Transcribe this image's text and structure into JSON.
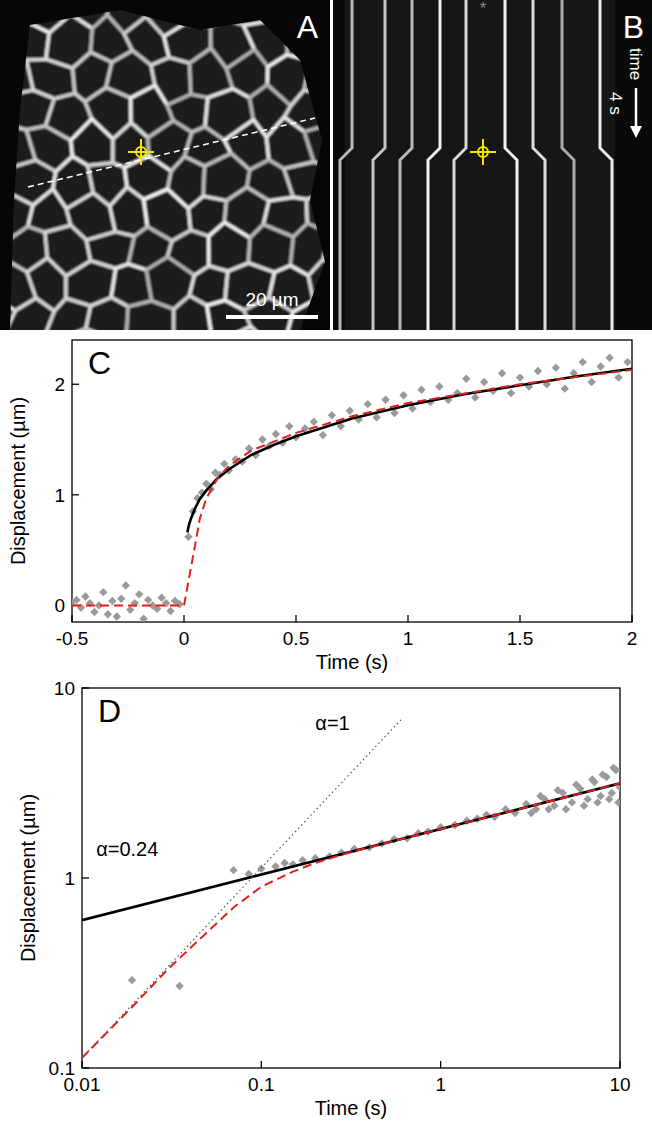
{
  "images": [
    {
      "letter": "A",
      "scale_bar": "20 µm"
    },
    {
      "letter": "B",
      "asterisk": "*",
      "time_axis": "time",
      "time_scale": "4 s"
    }
  ],
  "chart_data": [
    {
      "type": "scatter",
      "title": "C",
      "x_label": "Time (s)",
      "y_label": "Displacement (µm)",
      "xlim": [
        -0.5,
        2
      ],
      "ylim": [
        -0.15,
        2.4
      ],
      "xticks": [
        -0.5,
        0,
        0.5,
        1,
        1.5,
        2
      ],
      "yticks": [
        0,
        1,
        2
      ],
      "series": [
        {
          "type": "scatter",
          "color": "#9a9a9a",
          "marker": "diamond",
          "x": [
            -0.5,
            -0.48,
            -0.46,
            -0.44,
            -0.42,
            -0.4,
            -0.38,
            -0.36,
            -0.34,
            -0.32,
            -0.3,
            -0.28,
            -0.26,
            -0.24,
            -0.22,
            -0.2,
            -0.18,
            -0.16,
            -0.14,
            -0.12,
            -0.1,
            -0.08,
            -0.06,
            -0.04,
            -0.02,
            0.02,
            0.04,
            0.06,
            0.08,
            0.1,
            0.12,
            0.14,
            0.16,
            0.18,
            0.2,
            0.23,
            0.26,
            0.29,
            0.32,
            0.35,
            0.38,
            0.41,
            0.44,
            0.47,
            0.5,
            0.54,
            0.58,
            0.62,
            0.66,
            0.7,
            0.74,
            0.78,
            0.82,
            0.86,
            0.9,
            0.94,
            0.98,
            1.02,
            1.06,
            1.1,
            1.14,
            1.18,
            1.22,
            1.26,
            1.3,
            1.34,
            1.38,
            1.42,
            1.46,
            1.5,
            1.54,
            1.58,
            1.62,
            1.66,
            1.7,
            1.74,
            1.78,
            1.82,
            1.86,
            1.9,
            1.94,
            1.98
          ],
          "values": [
            0.03,
            0.05,
            -0.02,
            0.08,
            0.02,
            -0.06,
            0,
            0.12,
            -0.08,
            0.04,
            -0.1,
            0.06,
            0.18,
            -0.04,
            0.02,
            0.1,
            -0.12,
            0.05,
            0,
            -0.03,
            0.07,
            0.02,
            -0.05,
            0.04,
            0.01,
            0.62,
            0.85,
            0.97,
            1.02,
            1.1,
            1.05,
            1.2,
            1.18,
            1.28,
            1.22,
            1.32,
            1.3,
            1.42,
            1.36,
            1.5,
            1.44,
            1.55,
            1.47,
            1.62,
            1.52,
            1.6,
            1.66,
            1.54,
            1.72,
            1.62,
            1.76,
            1.68,
            1.82,
            1.7,
            1.86,
            1.74,
            1.9,
            1.78,
            1.95,
            1.84,
            1.98,
            1.86,
            1.92,
            2.05,
            1.88,
            2.02,
            1.94,
            2.1,
            1.92,
            2.06,
            1.98,
            2.12,
            2.0,
            2.15,
            1.96,
            2.1,
            2.2,
            2.02,
            2.16,
            2.24,
            2.06,
            2.2
          ]
        },
        {
          "type": "line",
          "color": "#000000",
          "line_style": "solid",
          "x": [
            0.015,
            0.02,
            0.03,
            0.05,
            0.07,
            0.1,
            0.15,
            0.2,
            0.3,
            0.4,
            0.5,
            0.75,
            1,
            1.25,
            1.5,
            1.75,
            2
          ],
          "values": [
            0.66,
            0.71,
            0.78,
            0.88,
            0.96,
            1.04,
            1.15,
            1.23,
            1.36,
            1.45,
            1.53,
            1.69,
            1.81,
            1.91,
            1.99,
            2.07,
            2.14
          ]
        },
        {
          "type": "line",
          "color": "#e0201b",
          "line_style": "dashed",
          "x": [
            -0.5,
            0,
            0.01,
            0.02,
            0.03,
            0.05,
            0.07,
            0.1,
            0.15,
            0.2,
            0.3,
            0.5,
            0.75,
            1,
            1.5,
            2
          ],
          "values": [
            0,
            0,
            0.11,
            0.22,
            0.33,
            0.55,
            0.78,
            0.97,
            1.15,
            1.26,
            1.4,
            1.56,
            1.71,
            1.83,
            2.0,
            2.13
          ]
        }
      ]
    },
    {
      "type": "scatter",
      "title": "D",
      "x_label": "Time (s)",
      "y_label": "Displacement (µm)",
      "log": true,
      "xlim": [
        0.01,
        10
      ],
      "ylim": [
        0.1,
        10
      ],
      "xticks": [
        0.01,
        0.1,
        1,
        10
      ],
      "yticks": [
        0.1,
        1,
        10
      ],
      "annotations": [
        {
          "text": "α=1",
          "x": 0.2,
          "y": 6
        },
        {
          "text": "α=0.24",
          "x": 0.012,
          "y": 1.3
        }
      ],
      "series": [
        {
          "type": "scatter",
          "color": "#9a9a9a",
          "marker": "diamond",
          "x": [
            0.019,
            0.035,
            0.07,
            0.085,
            0.1,
            0.12,
            0.135,
            0.15,
            0.17,
            0.2,
            0.24,
            0.28,
            0.33,
            0.4,
            0.47,
            0.55,
            0.65,
            0.75,
            0.85,
            1,
            1.2,
            1.4,
            1.6,
            1.8,
            2,
            2.3,
            2.6,
            3,
            3.2,
            3.4,
            3.6,
            3.8,
            4,
            4.3,
            4.5,
            4.8,
            5,
            5.4,
            5.7,
            6,
            6.3,
            6.6,
            7,
            7.2,
            7.5,
            7.8,
            8,
            8.4,
            8.7,
            9,
            9.2,
            9.5,
            9.8,
            10
          ],
          "values": [
            0.29,
            0.27,
            1.1,
            1.05,
            1.12,
            1.15,
            1.2,
            1.18,
            1.24,
            1.27,
            1.3,
            1.36,
            1.42,
            1.45,
            1.52,
            1.6,
            1.62,
            1.72,
            1.75,
            1.85,
            1.9,
            2.0,
            2.05,
            2.15,
            2.1,
            2.3,
            2.2,
            2.45,
            2.2,
            2.3,
            2.7,
            2.6,
            2.3,
            2.4,
            2.9,
            2.8,
            2.3,
            2.5,
            3.1,
            2.95,
            2.4,
            2.6,
            3.3,
            3.2,
            2.5,
            2.7,
            3.5,
            3.4,
            2.6,
            2.8,
            3.8,
            3.7,
            2.5,
            3.0
          ]
        },
        {
          "type": "line",
          "color": "#000000",
          "line_style": "solid",
          "x": [
            0.01,
            10
          ],
          "values": [
            0.6,
            3.15
          ]
        },
        {
          "type": "line",
          "color": "#e0201b",
          "line_style": "dashed",
          "x": [
            0.01,
            0.02,
            0.03,
            0.05,
            0.07,
            0.1,
            0.15,
            0.2,
            0.3,
            0.5,
            1,
            2,
            5,
            10
          ],
          "values": [
            0.113,
            0.22,
            0.33,
            0.52,
            0.7,
            0.9,
            1.08,
            1.2,
            1.35,
            1.53,
            1.81,
            2.14,
            2.66,
            3.15
          ]
        },
        {
          "type": "line",
          "color": "#555555",
          "line_style": "dotted",
          "x": [
            0.01,
            0.6
          ],
          "values": [
            0.113,
            6.8
          ]
        }
      ]
    }
  ]
}
